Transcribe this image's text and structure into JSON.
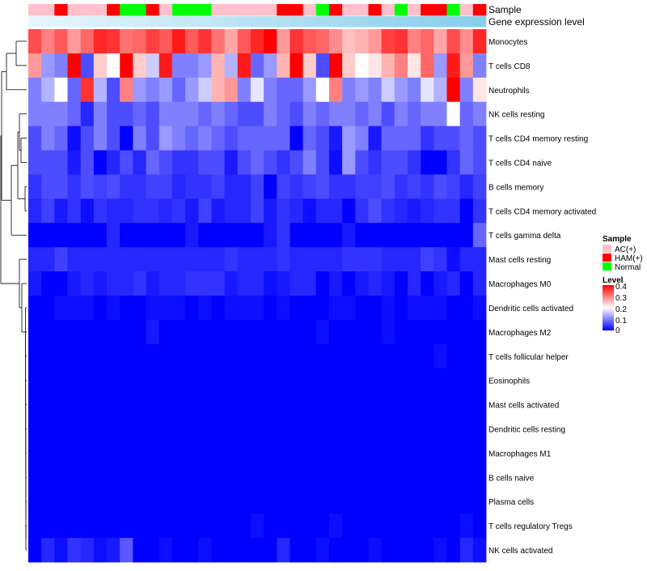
{
  "chart_data": {
    "type": "heatmap",
    "title": "",
    "annotations": [
      {
        "name": "Sample",
        "kind": "categorical"
      },
      {
        "name": "Gene expression level",
        "kind": "continuous"
      }
    ],
    "rows": [
      "Monocytes",
      "T cells CD8",
      "Neutrophils",
      "NK cells resting",
      "T cells CD4 memory resting",
      "T cells CD4 naive",
      "B cells memory",
      "T cells CD4 memory activated",
      "T cells gamma delta",
      "Mast cells resting",
      "Macrophages M0",
      "Dendritic cells activated",
      "Macrophages M2",
      "T cells follicular helper",
      "Eosinophils",
      "Mast cells activated",
      "Dendritic cells resting",
      "Macrophages M1",
      "B cells naive",
      "Plasma cells",
      "T cells regulatory  Tregs",
      "NK cells activated"
    ],
    "sample_groups": [
      "AC(+)",
      "AC(+)",
      "HAM(+)",
      "AC(+)",
      "AC(+)",
      "AC(+)",
      "HAM(+)",
      "Normal",
      "Normal",
      "HAM(+)",
      "AC(+)",
      "Normal",
      "Normal",
      "Normal",
      "AC(+)",
      "AC(+)",
      "AC(+)",
      "AC(+)",
      "AC(+)",
      "HAM(+)",
      "HAM(+)",
      "AC(+)",
      "Normal",
      "HAM(+)",
      "AC(+)",
      "AC(+)",
      "HAM(+)",
      "AC(+)",
      "Normal",
      "AC(+)",
      "HAM(+)",
      "HAM(+)",
      "Normal",
      "AC(+)",
      "HAM(+)"
    ],
    "values": [
      [
        0.34,
        0.3,
        0.33,
        0.28,
        0.32,
        0.37,
        0.36,
        0.31,
        0.32,
        0.35,
        0.33,
        0.38,
        0.33,
        0.36,
        0.31,
        0.27,
        0.33,
        0.37,
        0.4,
        0.28,
        0.36,
        0.33,
        0.32,
        0.29,
        0.25,
        0.26,
        0.28,
        0.35,
        0.36,
        0.3,
        0.32,
        0.27,
        0.34,
        0.29,
        0.37
      ],
      [
        0.28,
        0.12,
        0.1,
        0.4,
        0.06,
        0.24,
        0.2,
        0.4,
        0.24,
        0.16,
        0.38,
        0.1,
        0.1,
        0.12,
        0.26,
        0.14,
        0.38,
        0.08,
        0.12,
        0.26,
        0.4,
        0.24,
        0.06,
        0.4,
        0.24,
        0.2,
        0.22,
        0.26,
        0.3,
        0.22,
        0.32,
        0.12,
        0.38,
        0.28,
        0.1
      ],
      [
        0.1,
        0.14,
        0.2,
        0.08,
        0.36,
        0.14,
        0.06,
        0.3,
        0.12,
        0.1,
        0.12,
        0.08,
        0.12,
        0.16,
        0.26,
        0.28,
        0.1,
        0.18,
        0.1,
        0.08,
        0.08,
        0.12,
        0.2,
        0.3,
        0.1,
        0.12,
        0.1,
        0.16,
        0.12,
        0.1,
        0.18,
        0.14,
        0.4,
        0.1,
        0.22
      ],
      [
        0.1,
        0.1,
        0.1,
        0.08,
        0.03,
        0.1,
        0.06,
        0.06,
        0.08,
        0.06,
        0.1,
        0.1,
        0.1,
        0.08,
        0.1,
        0.08,
        0.06,
        0.06,
        0.1,
        0.08,
        0.06,
        0.1,
        0.08,
        0.1,
        0.1,
        0.08,
        0.1,
        0.06,
        0.1,
        0.08,
        0.1,
        0.1,
        0.2,
        0.08,
        0.1
      ],
      [
        0.06,
        0.1,
        0.08,
        0.01,
        0.06,
        0.1,
        0.06,
        0.0,
        0.1,
        0.06,
        0.12,
        0.1,
        0.08,
        0.1,
        0.08,
        0.06,
        0.08,
        0.08,
        0.08,
        0.08,
        0.0,
        0.08,
        0.06,
        0.02,
        0.12,
        0.1,
        0.02,
        0.08,
        0.08,
        0.08,
        0.04,
        0.06,
        0.06,
        0.08,
        0.06
      ],
      [
        0.06,
        0.06,
        0.06,
        0.02,
        0.06,
        0.0,
        0.03,
        0.06,
        0.03,
        0.08,
        0.06,
        0.04,
        0.04,
        0.06,
        0.06,
        0.02,
        0.06,
        0.08,
        0.06,
        0.04,
        0.06,
        0.1,
        0.06,
        0.01,
        0.12,
        0.06,
        0.04,
        0.06,
        0.06,
        0.04,
        0.0,
        0.0,
        0.04,
        0.08,
        0.06
      ],
      [
        0.04,
        0.06,
        0.06,
        0.04,
        0.06,
        0.05,
        0.06,
        0.04,
        0.04,
        0.05,
        0.05,
        0.03,
        0.04,
        0.04,
        0.05,
        0.03,
        0.03,
        0.05,
        0.0,
        0.05,
        0.04,
        0.05,
        0.06,
        0.04,
        0.04,
        0.05,
        0.05,
        0.06,
        0.04,
        0.05,
        0.04,
        0.06,
        0.05,
        0.03,
        0.05
      ],
      [
        0.03,
        0.05,
        0.02,
        0.04,
        0.01,
        0.04,
        0.03,
        0.03,
        0.04,
        0.04,
        0.03,
        0.04,
        0.02,
        0.05,
        0.02,
        0.03,
        0.03,
        0.05,
        0.02,
        0.04,
        0.03,
        0.01,
        0.03,
        0.03,
        0.0,
        0.04,
        0.06,
        0.04,
        0.03,
        0.02,
        0.03,
        0.04,
        0.04,
        0.0,
        0.04
      ],
      [
        0.0,
        0.0,
        0.0,
        0.0,
        0.0,
        0.0,
        0.03,
        0.0,
        0.0,
        0.0,
        0.0,
        0.0,
        0.02,
        0.0,
        0.0,
        0.0,
        0.0,
        0.0,
        0.02,
        0.04,
        0.0,
        0.0,
        0.0,
        0.0,
        0.02,
        0.0,
        0.0,
        0.0,
        0.0,
        0.0,
        0.0,
        0.0,
        0.0,
        0.0,
        0.08
      ],
      [
        0.03,
        0.03,
        0.05,
        0.03,
        0.03,
        0.03,
        0.03,
        0.03,
        0.03,
        0.03,
        0.03,
        0.03,
        0.03,
        0.03,
        0.03,
        0.04,
        0.03,
        0.03,
        0.03,
        0.04,
        0.03,
        0.03,
        0.03,
        0.03,
        0.04,
        0.04,
        0.04,
        0.03,
        0.03,
        0.03,
        0.05,
        0.04,
        0.01,
        0.03,
        0.03
      ],
      [
        0.02,
        0.0,
        0.0,
        0.02,
        0.03,
        0.02,
        0.03,
        0.03,
        0.04,
        0.02,
        0.03,
        0.03,
        0.04,
        0.04,
        0.04,
        0.02,
        0.03,
        0.03,
        0.01,
        0.02,
        0.03,
        0.03,
        0.0,
        0.02,
        0.0,
        0.02,
        0.03,
        0.02,
        0.0,
        0.03,
        0.0,
        0.02,
        0.03,
        0.0,
        0.03
      ],
      [
        0.0,
        0.0,
        0.01,
        0.01,
        0.01,
        0.0,
        0.01,
        0.0,
        0.0,
        0.01,
        0.01,
        0.01,
        0.0,
        0.01,
        0.0,
        0.01,
        0.01,
        0.01,
        0.0,
        0.01,
        0.0,
        0.0,
        0.0,
        0.01,
        0.01,
        0.0,
        0.0,
        0.01,
        0.0,
        0.01,
        0.01,
        0.01,
        0.0,
        0.0,
        0.01
      ],
      [
        0.0,
        0.0,
        0.0,
        0.0,
        0.0,
        0.0,
        0.0,
        0.0,
        0.0,
        0.02,
        0.0,
        0.0,
        0.0,
        0.0,
        0.0,
        0.0,
        0.0,
        0.0,
        0.0,
        0.0,
        0.0,
        0.0,
        0.01,
        0.0,
        0.0,
        0.0,
        0.0,
        0.01,
        0.0,
        0.0,
        0.0,
        0.0,
        0.0,
        0.0,
        0.0
      ],
      [
        0.0,
        0.0,
        0.0,
        0.0,
        0.0,
        0.0,
        0.0,
        0.0,
        0.0,
        0.0,
        0.0,
        0.0,
        0.0,
        0.0,
        0.0,
        0.0,
        0.0,
        0.0,
        0.0,
        0.0,
        0.0,
        0.0,
        0.0,
        0.0,
        0.0,
        0.0,
        0.0,
        0.0,
        0.0,
        0.0,
        0.0,
        0.01,
        0.0,
        0.0,
        0.0
      ],
      [
        0,
        0,
        0,
        0,
        0,
        0,
        0,
        0,
        0,
        0,
        0,
        0,
        0,
        0,
        0,
        0,
        0,
        0,
        0,
        0,
        0,
        0,
        0,
        0,
        0,
        0,
        0,
        0,
        0,
        0,
        0,
        0,
        0,
        0,
        0
      ],
      [
        0,
        0,
        0,
        0,
        0,
        0,
        0,
        0,
        0,
        0,
        0,
        0,
        0,
        0,
        0,
        0,
        0,
        0,
        0,
        0,
        0,
        0,
        0,
        0,
        0,
        0,
        0,
        0,
        0,
        0,
        0,
        0,
        0,
        0,
        0
      ],
      [
        0,
        0,
        0,
        0,
        0,
        0,
        0,
        0,
        0,
        0,
        0,
        0,
        0,
        0,
        0,
        0,
        0,
        0,
        0,
        0,
        0,
        0,
        0,
        0,
        0,
        0,
        0,
        0,
        0,
        0,
        0,
        0,
        0,
        0,
        0
      ],
      [
        0,
        0,
        0,
        0,
        0,
        0,
        0,
        0,
        0,
        0,
        0,
        0,
        0,
        0,
        0,
        0,
        0,
        0,
        0,
        0,
        0,
        0,
        0,
        0,
        0,
        0,
        0,
        0,
        0,
        0,
        0,
        0,
        0,
        0,
        0
      ],
      [
        0,
        0,
        0,
        0,
        0,
        0,
        0,
        0,
        0,
        0,
        0,
        0,
        0,
        0,
        0,
        0,
        0,
        0,
        0,
        0,
        0,
        0,
        0,
        0,
        0,
        0,
        0,
        0,
        0,
        0,
        0,
        0,
        0,
        0,
        0
      ],
      [
        0,
        0,
        0,
        0,
        0,
        0,
        0,
        0,
        0,
        0,
        0,
        0,
        0,
        0,
        0,
        0,
        0,
        0,
        0,
        0,
        0,
        0,
        0,
        0,
        0,
        0,
        0,
        0,
        0,
        0,
        0,
        0,
        0,
        0,
        0
      ],
      [
        0.0,
        0.0,
        0.0,
        0.0,
        0.0,
        0.0,
        0.0,
        0.0,
        0.0,
        0.0,
        0.0,
        0.0,
        0.0,
        0.0,
        0.0,
        0.0,
        0.0,
        0.01,
        0.0,
        0.0,
        0.0,
        0.0,
        0.0,
        0.01,
        0.0,
        0.0,
        0.0,
        0.0,
        0.0,
        0.0,
        0.0,
        0.0,
        0.0,
        0.01,
        0.0
      ],
      [
        0.0,
        0.03,
        0.01,
        0.04,
        0.03,
        0.01,
        0.02,
        0.07,
        0.0,
        0.0,
        0.01,
        0.0,
        0.0,
        0.01,
        0.0,
        0.0,
        0.0,
        0.0,
        0.0,
        0.03,
        0.0,
        0.0,
        0.01,
        0.0,
        0.0,
        0.0,
        0.01,
        0.0,
        0.0,
        0.0,
        0.0,
        0.01,
        0.0,
        0.03,
        0.01
      ]
    ],
    "legends": {
      "sample": {
        "title": "Sample",
        "items": [
          {
            "label": "AC(+)",
            "color": "#ffc0cb"
          },
          {
            "label": "HAM(+)",
            "color": "#ff0000"
          },
          {
            "label": "Normal",
            "color": "#00ff00"
          }
        ]
      },
      "level": {
        "title": "Level",
        "ticks": [
          "0.4",
          "0.3",
          "0.2",
          "0.1",
          "0"
        ],
        "tick_values": [
          0.4,
          0.3,
          0.2,
          0.1,
          0
        ],
        "range": [
          0,
          0.4
        ],
        "colors": {
          "low": "#0000ff",
          "mid": "#ffffff",
          "high": "#ff0000"
        }
      }
    },
    "gene_expression_color": "#87ceeb"
  }
}
